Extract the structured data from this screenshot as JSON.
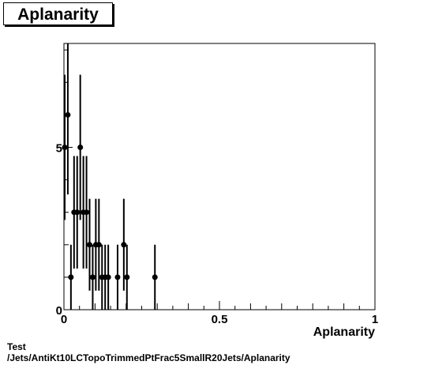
{
  "title": "Aplanarity",
  "footer": {
    "line1": "Test",
    "line2": "/Jets/AntiKt10LCTopoTrimmedPtFrac5SmallR20Jets/Aplanarity"
  },
  "chart_data": {
    "type": "scatter",
    "title": "Aplanarity",
    "xlabel": "Aplanarity",
    "ylabel": "",
    "xlim": [
      0,
      1
    ],
    "ylim": [
      0,
      8.2
    ],
    "x_ticks": [
      {
        "value": 0,
        "label": "0"
      },
      {
        "value": 0.5,
        "label": "0.5"
      },
      {
        "value": 1,
        "label": "1"
      }
    ],
    "y_ticks": [
      {
        "value": 0,
        "label": "0"
      },
      {
        "value": 5,
        "label": "5"
      }
    ],
    "points": [
      {
        "x": 0.0025,
        "y": 5
      },
      {
        "x": 0.0125,
        "y": 6
      },
      {
        "x": 0.0225,
        "y": 1
      },
      {
        "x": 0.0325,
        "y": 3
      },
      {
        "x": 0.0425,
        "y": 3
      },
      {
        "x": 0.0525,
        "y": 5
      },
      {
        "x": 0.0625,
        "y": 3
      },
      {
        "x": 0.0725,
        "y": 3
      },
      {
        "x": 0.0825,
        "y": 2
      },
      {
        "x": 0.0925,
        "y": 1
      },
      {
        "x": 0.1025,
        "y": 2
      },
      {
        "x": 0.1125,
        "y": 2
      },
      {
        "x": 0.1225,
        "y": 1
      },
      {
        "x": 0.1325,
        "y": 1
      },
      {
        "x": 0.1425,
        "y": 1
      },
      {
        "x": 0.1725,
        "y": 1
      },
      {
        "x": 0.1925,
        "y": 2
      },
      {
        "x": 0.2025,
        "y": 1
      },
      {
        "x": 0.2925,
        "y": 1
      }
    ]
  }
}
